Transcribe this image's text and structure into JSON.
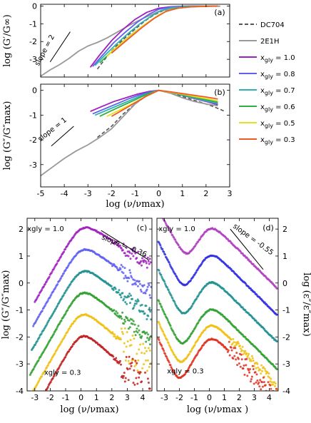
{
  "chart_data": [
    {
      "type": "line",
      "panel_label": "(a)",
      "xlim": [
        -5,
        3
      ],
      "ylim": [
        -4,
        0.1
      ],
      "x_ticks": [
        -5,
        -4,
        -3,
        -2,
        -1,
        0,
        1,
        2,
        3
      ],
      "y_ticks": [
        0,
        -1,
        -2,
        -3
      ],
      "xlabel": "",
      "ylabel": "log (G′/G∞)",
      "annotations": [
        {
          "text": "slope = 2"
        }
      ],
      "series": [
        {
          "name": "DC704",
          "style": "dashed",
          "color": "#555555",
          "x": [
            -2.6,
            -2.2,
            -1.8,
            -1.4,
            -1.0,
            -0.6,
            -0.2,
            0.2,
            0.8,
            1.5,
            2.5
          ],
          "y": [
            -3.55,
            -2.85,
            -2.25,
            -1.75,
            -1.3,
            -0.85,
            -0.5,
            -0.25,
            -0.08,
            -0.02,
            0
          ]
        },
        {
          "name": "2E1H",
          "style": "solid",
          "color": "#999999",
          "x": [
            -5.0,
            -4.6,
            -4.2,
            -3.8,
            -3.4,
            -3.0,
            -2.6,
            -2.2,
            -1.8,
            -1.2,
            -0.6,
            0,
            0.6,
            1.2,
            2.0,
            2.6
          ],
          "y": [
            -3.95,
            -3.6,
            -3.3,
            -2.95,
            -2.55,
            -2.25,
            -2.05,
            -1.8,
            -1.5,
            -1.05,
            -0.65,
            -0.3,
            -0.12,
            -0.05,
            -0.02,
            -0.01
          ]
        },
        {
          "name": "x_gly = 1.0",
          "color": "#a020c0",
          "x": [
            -2.9,
            -2.5,
            -2.0,
            -1.5,
            -1.0,
            -0.5,
            0,
            0.5,
            1.0,
            1.5,
            2.0,
            2.5
          ],
          "y": [
            -3.45,
            -2.75,
            -1.95,
            -1.3,
            -0.75,
            -0.35,
            -0.12,
            -0.04,
            -0.01,
            0,
            0,
            0
          ]
        },
        {
          "name": "x_gly = 0.8",
          "color": "#6060f0",
          "x": [
            -2.8,
            -2.4,
            -1.9,
            -1.4,
            -0.9,
            -0.4,
            0,
            0.5,
            1.0,
            1.5,
            2.0,
            2.5
          ],
          "y": [
            -3.4,
            -2.8,
            -2.05,
            -1.45,
            -0.9,
            -0.45,
            -0.18,
            -0.06,
            -0.02,
            0,
            0,
            0
          ]
        },
        {
          "name": "x_gly = 0.7",
          "color": "#30b0b0",
          "x": [
            -2.7,
            -2.3,
            -1.8,
            -1.3,
            -0.8,
            -0.3,
            0.1,
            0.5,
            1.0,
            1.5,
            2.0,
            2.5
          ],
          "y": [
            -3.35,
            -2.8,
            -2.15,
            -1.55,
            -1.0,
            -0.55,
            -0.25,
            -0.1,
            -0.03,
            -0.01,
            0,
            0
          ]
        },
        {
          "name": "x_gly = 0.6",
          "color": "#30b040",
          "x": [
            -2.5,
            -2.1,
            -1.6,
            -1.1,
            -0.6,
            -0.1,
            0.3,
            0.7,
            1.2,
            1.7,
            2.2,
            2.5
          ],
          "y": [
            -3.2,
            -2.7,
            -2.1,
            -1.55,
            -1.05,
            -0.6,
            -0.3,
            -0.14,
            -0.05,
            -0.02,
            0,
            0
          ]
        },
        {
          "name": "x_gly = 0.5",
          "color": "#e8e020",
          "x": [
            -2.2,
            -1.9,
            -1.5,
            -1.0,
            -0.5,
            0,
            0.4,
            0.9,
            1.4,
            1.9,
            2.5
          ],
          "y": [
            -2.85,
            -2.45,
            -2.0,
            -1.45,
            -0.95,
            -0.5,
            -0.25,
            -0.1,
            -0.04,
            -0.01,
            0
          ]
        },
        {
          "name": "x_gly = 0.3",
          "color": "#ee5a2a",
          "x": [
            -2.0,
            -1.6,
            -1.2,
            -0.7,
            -0.2,
            0.3,
            0.8,
            1.3,
            1.8,
            2.3,
            2.5
          ],
          "y": [
            -2.65,
            -2.2,
            -1.75,
            -1.2,
            -0.7,
            -0.3,
            -0.12,
            -0.05,
            -0.02,
            0,
            0
          ]
        }
      ]
    },
    {
      "type": "line",
      "panel_label": "(b)",
      "xlim": [
        -5,
        3
      ],
      "ylim": [
        -3.9,
        0.25
      ],
      "x_ticks": [
        -5,
        -4,
        -3,
        -2,
        -1,
        0,
        1,
        2,
        3
      ],
      "y_ticks": [
        0,
        -1,
        -2,
        -3
      ],
      "xlabel": "log (ν/νmax)",
      "ylabel": "log (G″/G″max)",
      "annotations": [
        {
          "text": "slope = 1"
        }
      ],
      "series": [
        {
          "name": "DC704",
          "style": "dashed",
          "color": "#555555",
          "x": [
            -2.6,
            -2.0,
            -1.5,
            -1.0,
            -0.5,
            0,
            0.5,
            1.0,
            1.5,
            2.0,
            2.3,
            2.8
          ],
          "y": [
            -1.9,
            -1.45,
            -0.95,
            -0.55,
            -0.2,
            0,
            -0.1,
            -0.25,
            -0.4,
            -0.55,
            -0.65,
            -0.85
          ]
        },
        {
          "name": "2E1H",
          "style": "solid",
          "color": "#999999",
          "x": [
            -5.0,
            -4.5,
            -4.0,
            -3.5,
            -3.0,
            -2.5,
            -2.0,
            -1.5,
            -1.0,
            -0.5,
            0,
            0.5,
            1.0,
            1.5,
            2.0,
            2.5
          ],
          "y": [
            -3.45,
            -3.1,
            -2.75,
            -2.45,
            -2.2,
            -1.9,
            -1.55,
            -1.05,
            -0.55,
            -0.18,
            0,
            -0.12,
            -0.3,
            -0.45,
            -0.55,
            -0.62
          ]
        },
        {
          "name": "x_gly = 1.0",
          "color": "#a020c0",
          "x": [
            -2.9,
            -2.4,
            -1.9,
            -1.4,
            -0.9,
            -0.4,
            0,
            0.5,
            1.0,
            1.5,
            2.0,
            2.5
          ],
          "y": [
            -0.85,
            -0.65,
            -0.45,
            -0.3,
            -0.15,
            -0.04,
            0,
            -0.08,
            -0.2,
            -0.33,
            -0.45,
            -0.58
          ]
        },
        {
          "name": "x_gly = 0.8",
          "color": "#6060f0",
          "x": [
            -2.8,
            -2.3,
            -1.8,
            -1.3,
            -0.8,
            -0.3,
            0,
            0.5,
            1.0,
            1.5,
            2.0,
            2.5
          ],
          "y": [
            -0.95,
            -0.75,
            -0.55,
            -0.35,
            -0.18,
            -0.05,
            0,
            -0.08,
            -0.2,
            -0.32,
            -0.44,
            -0.55
          ]
        },
        {
          "name": "x_gly = 0.7",
          "color": "#30b0b0",
          "x": [
            -2.7,
            -2.2,
            -1.7,
            -1.2,
            -0.7,
            -0.2,
            0,
            0.5,
            1.0,
            1.5,
            2.0,
            2.5
          ],
          "y": [
            -1.0,
            -0.8,
            -0.6,
            -0.4,
            -0.2,
            -0.05,
            0,
            -0.08,
            -0.2,
            -0.3,
            -0.42,
            -0.52
          ]
        },
        {
          "name": "x_gly = 0.6",
          "color": "#30b040",
          "x": [
            -2.5,
            -2.0,
            -1.5,
            -1.0,
            -0.5,
            0,
            0.5,
            1.0,
            1.5,
            2.0,
            2.5
          ],
          "y": [
            -1.05,
            -0.82,
            -0.6,
            -0.38,
            -0.15,
            0,
            -0.08,
            -0.18,
            -0.28,
            -0.38,
            -0.48
          ]
        },
        {
          "name": "x_gly = 0.5",
          "color": "#e8e020",
          "x": [
            -2.2,
            -1.7,
            -1.2,
            -0.7,
            -0.2,
            0,
            0.5,
            1.0,
            1.5,
            2.0,
            2.5
          ],
          "y": [
            -1.05,
            -0.82,
            -0.58,
            -0.32,
            -0.08,
            0,
            -0.08,
            -0.15,
            -0.25,
            -0.33,
            -0.42
          ]
        },
        {
          "name": "x_gly = 0.3",
          "color": "#ee5a2a",
          "x": [
            -2.0,
            -1.5,
            -1.0,
            -0.5,
            0,
            0.5,
            1.0,
            1.5,
            2.0,
            2.5
          ],
          "y": [
            -1.05,
            -0.78,
            -0.5,
            -0.22,
            0,
            -0.06,
            -0.13,
            -0.2,
            -0.27,
            -0.35
          ]
        }
      ]
    },
    {
      "type": "scatter",
      "panel_label": "(c)",
      "xlim": [
        -3.5,
        4.6
      ],
      "ylim": [
        -4,
        2.4
      ],
      "x_ticks": [
        -3,
        -2,
        -1,
        0,
        1,
        2,
        3,
        4
      ],
      "y_ticks": [
        2,
        1,
        0,
        -1,
        -2,
        -3,
        -4
      ],
      "xlabel": "log (ν/νmax)",
      "ylabel": "log (G″/G″max)",
      "annotations": [
        {
          "text": "xgly = 1.0"
        },
        {
          "text": "xgly = 0.3"
        },
        {
          "text": "slope = -0.36"
        }
      ],
      "series": [
        {
          "name": "x_gly = 1.0",
          "color": "#a020c0",
          "offset": 2.0,
          "x_min": -3.0
        },
        {
          "name": "x_gly = 0.8",
          "color": "#6060f0",
          "offset": 1.2,
          "x_min": -3.1
        },
        {
          "name": "x_gly = 0.7",
          "color": "#209090",
          "offset": 0.4,
          "x_min": -3.2
        },
        {
          "name": "x_gly = 0.6",
          "color": "#30a030",
          "offset": -0.4,
          "x_min": -3.3
        },
        {
          "name": "x_gly = 0.5",
          "color": "#f0c010",
          "offset": -1.2,
          "x_min": -3.4
        },
        {
          "name": "x_gly = 0.3",
          "color": "#c02020",
          "offset": -2.0,
          "x_min": -2.5
        }
      ]
    },
    {
      "type": "scatter",
      "panel_label": "(d)",
      "xlim": [
        -3.5,
        4.6
      ],
      "ylim": [
        -4,
        2.4
      ],
      "x_ticks": [
        -3,
        -2,
        -1,
        0,
        1,
        2,
        3,
        4
      ],
      "y_ticks": [
        2,
        1,
        0,
        -1,
        -2,
        -3,
        -4
      ],
      "xlabel": "log (ν/νmax )",
      "ylabel": "log (ε″/ε″max)",
      "annotations": [
        {
          "text": "xgly = 1.0"
        },
        {
          "text": "xgly = 0.3"
        },
        {
          "text": "slope = -0.55"
        }
      ],
      "series": [
        {
          "name": "x_gly = 1.0",
          "color": "#b040c0",
          "offset": 2.0
        },
        {
          "name": "x_gly = 0.8",
          "color": "#3030e0",
          "offset": 1.0
        },
        {
          "name": "x_gly = 0.7",
          "color": "#209090",
          "offset": 0.0
        },
        {
          "name": "x_gly = 0.6",
          "color": "#30a030",
          "offset": -1.0
        },
        {
          "name": "x_gly = 0.5",
          "color": "#f0c010",
          "offset": -1.6
        },
        {
          "name": "x_gly = 0.3",
          "color": "#e03020",
          "offset": -2.1
        }
      ]
    }
  ],
  "legend": {
    "placement": "right",
    "items": [
      {
        "label": "DC704",
        "color": "#555555",
        "style": "dashed"
      },
      {
        "label": "2E1H",
        "color": "#999999",
        "style": "solid"
      },
      {
        "label": "x",
        "sub": "gly",
        "suffix": " = 1.0",
        "color": "#a020c0",
        "style": "solid"
      },
      {
        "label": "x",
        "sub": "gly",
        "suffix": " = 0.8",
        "color": "#6060f0",
        "style": "solid"
      },
      {
        "label": "x",
        "sub": "gly",
        "suffix": " = 0.7",
        "color": "#30b0b0",
        "style": "solid"
      },
      {
        "label": "x",
        "sub": "gly",
        "suffix": " = 0.6",
        "color": "#30b040",
        "style": "solid"
      },
      {
        "label": "x",
        "sub": "gly",
        "suffix": " = 0.5",
        "color": "#e8e020",
        "style": "solid"
      },
      {
        "label": "x",
        "sub": "gly",
        "suffix": " = 0.3",
        "color": "#ee5a2a",
        "style": "solid"
      }
    ]
  }
}
